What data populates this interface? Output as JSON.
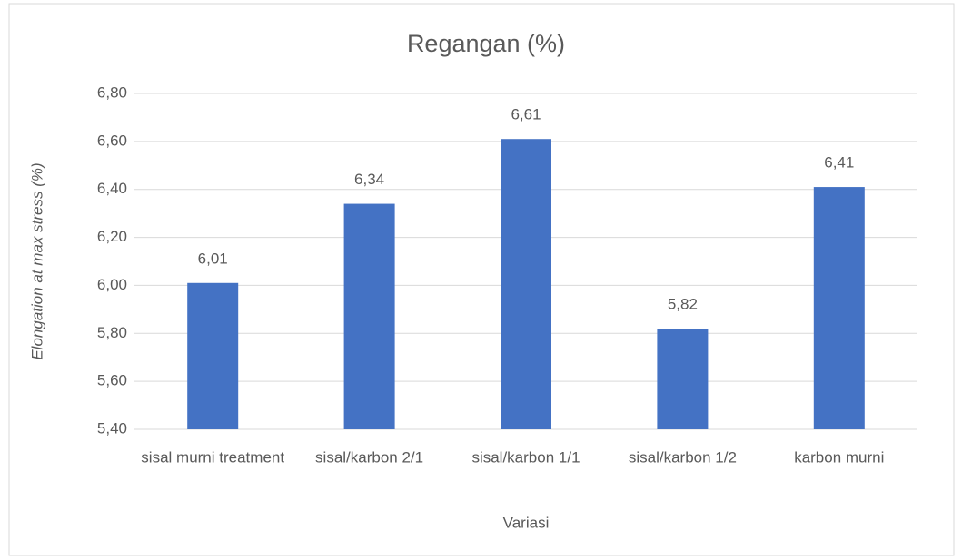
{
  "chart_data": {
    "type": "bar",
    "title": "Regangan (%)",
    "x_label": "Variasi",
    "y_label": "Elongation at max stress (%)",
    "categories": [
      "sisal murni treatment",
      "sisal/karbon 2/1",
      "sisal/karbon 1/1",
      "sisal/karbon 1/2",
      "karbon murni"
    ],
    "values": [
      6.01,
      6.34,
      6.61,
      5.82,
      6.41
    ],
    "value_labels": [
      "6,01",
      "6,34",
      "6,61",
      "5,82",
      "6,41"
    ],
    "color": "#4472c4",
    "ylim": [
      5.4,
      6.8
    ],
    "yticks": [
      {
        "value": 5.4,
        "label": "5,40"
      },
      {
        "value": 5.6,
        "label": "5,60"
      },
      {
        "value": 5.8,
        "label": "5,80"
      },
      {
        "value": 6.0,
        "label": "6,00"
      },
      {
        "value": 6.2,
        "label": "6,20"
      },
      {
        "value": 6.4,
        "label": "6,40"
      },
      {
        "value": 6.6,
        "label": "6,60"
      },
      {
        "value": 6.8,
        "label": "6,80"
      }
    ],
    "grid": true
  }
}
